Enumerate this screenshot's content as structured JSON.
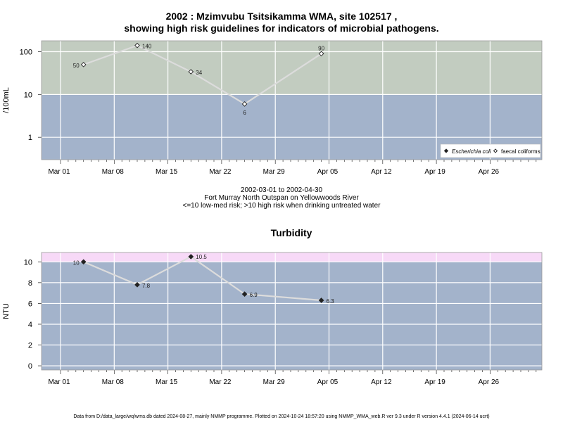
{
  "title_line1": "2002 : Mzimvubu Tsitsikamma WMA, site 102517 ,",
  "title_line2": "showing high risk guidelines for indicators of microbial pathogens.",
  "subtitle": {
    "date_range": "2002-03-01 to 2002-04-30",
    "location": "Fort Murray North Outspan on Yellowwoods River",
    "risk_note": "<=10 low-med risk; >10 high risk when drinking untreated water"
  },
  "footer": "Data from D:/data_large/wq/wms.db dated 2024-08-27, mainly NMMP programme. Plotted on 2024-10-24 18:57:20 using NMMP_WMA_web.R ver 9.3 under R version 4.4.1 (2024-06-14 ucrt)",
  "colors": {
    "panel_blue": "#a3b3cb",
    "high_risk_green": "#c2ccc0",
    "high_risk_pink": "#f7d9f7",
    "line": "#dcdcdc",
    "grid": "#ffffff"
  },
  "chart_data": [
    {
      "type": "line",
      "title": "",
      "ylabel": "/100mL",
      "y_scale": "log",
      "ylim": [
        0.3,
        180
      ],
      "threshold": 10,
      "x_tick_labels": [
        "Mar 01",
        "Mar 08",
        "Mar 15",
        "Mar 22",
        "Mar 29",
        "Apr 05",
        "Apr 12",
        "Apr 19",
        "Apr 26"
      ],
      "y_tick_labels": [
        "1",
        "10",
        "100"
      ],
      "y_tick_values": [
        1,
        10,
        100
      ],
      "legend": {
        "placement": "bottom-right",
        "entries": [
          {
            "label": "Escherichia coli",
            "marker": "filled-diamond",
            "italic": true
          },
          {
            "label": "faecal coliforms",
            "marker": "open-diamond",
            "italic": false
          }
        ]
      },
      "series": [
        {
          "name": "faecal coliforms",
          "marker": "open-diamond",
          "x": [
            "2002-03-04",
            "2002-03-11",
            "2002-03-18",
            "2002-03-25",
            "2002-04-04"
          ],
          "values": [
            50,
            140,
            34,
            6,
            90
          ],
          "labels": [
            "50",
            "140",
            "34",
            "6",
            "90"
          ]
        }
      ]
    },
    {
      "type": "line",
      "title": "Turbidity",
      "ylabel": "NTU",
      "y_scale": "linear",
      "ylim": [
        -0.4,
        10.9
      ],
      "threshold": 10,
      "x_tick_labels": [
        "Mar 01",
        "Mar 08",
        "Mar 15",
        "Mar 22",
        "Mar 29",
        "Apr 05",
        "Apr 12",
        "Apr 19",
        "Apr 26"
      ],
      "y_tick_labels": [
        "0",
        "2",
        "4",
        "6",
        "8",
        "10"
      ],
      "y_tick_values": [
        0,
        2,
        4,
        6,
        8,
        10
      ],
      "series": [
        {
          "marker": "filled-diamond",
          "x": [
            "2002-03-04",
            "2002-03-11",
            "2002-03-18",
            "2002-03-25",
            "2002-04-04"
          ],
          "values": [
            10,
            7.8,
            10.5,
            6.9,
            6.3
          ],
          "labels": [
            "10",
            "7.8",
            "10.5",
            "6.9",
            "6.3"
          ]
        }
      ]
    }
  ]
}
